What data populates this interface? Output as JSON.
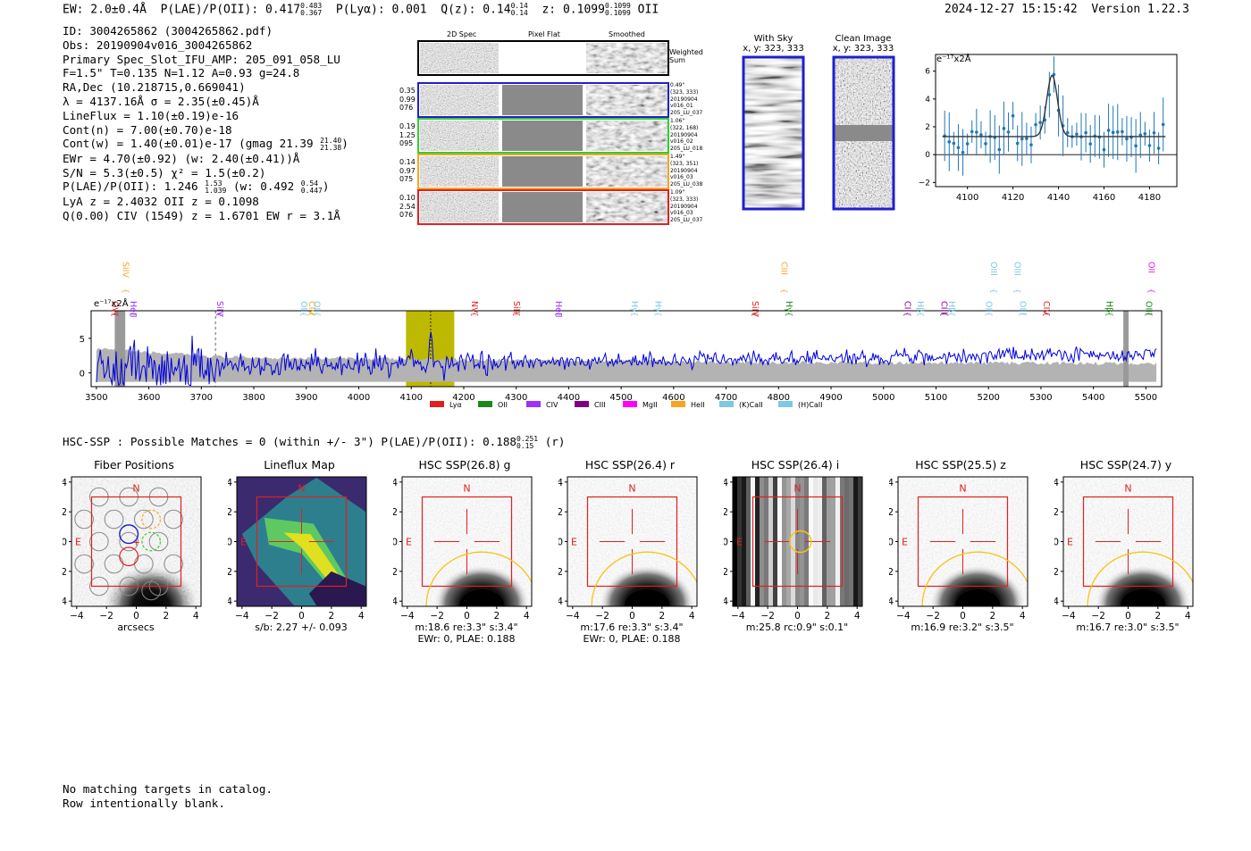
{
  "header": {
    "ew": "EW: 2.0±0.4Å",
    "plae_label": "P(LAE)/P(OII): 0.417",
    "plae_hi": "0.483",
    "plae_lo": "0.367",
    "plya": "P(Lyα): 0.001",
    "qz_label": "Q(z): 0.14",
    "qz_hi": "0.14",
    "qz_lo": "0.14",
    "z_label": "z: 0.1099",
    "z_hi": "0.1099",
    "z_lo": "0.1099",
    "z_line": "OII",
    "timestamp": "2024-12-27 15:15:42",
    "version": "Version 1.22.3"
  },
  "info": {
    "id": "ID: 3004265862 (3004265862.pdf)",
    "obs": "Obs: 20190904v016_3004265862",
    "primary": "Primary Spec_Slot_IFU_AMP: 205_091_058_LU",
    "fit": "F=1.5\"  T=0.135  N=1.12  A=0.93  g=24.8",
    "radec": "RA,Dec (10.218715,0.669041)",
    "lambda": "λ = 4137.16Å  σ = 2.35(±0.45)Å",
    "lineflux": "LineFlux = 1.10(±0.19)e-16",
    "contn": "Cont(n) = 7.00(±0.70)e-18",
    "contw": "Cont(w) = 1.40(±0.01)e-17 (gmag 21.39",
    "contw_hi": "21.40",
    "contw_lo": "21.38",
    "ewr": "EWr = 4.70(±0.92) (w: 2.40(±0.41))Å",
    "sn": "S/N = 5.3(±0.5)  χ² = 1.5(±0.2)",
    "plae": "P(LAE)/P(OII): 1.246",
    "plae_hi": "1.53",
    "plae_lo": "1.039",
    "plae_w": "(w: 0.492",
    "plae_w_hi": "0.54",
    "plae_w_lo": "0.447",
    "lya": "LyA z = 2.4032  OII z = 0.1098",
    "civ": "Q(0.00) CIV (1549) z = 1.6701  EW r = 3.1Å"
  },
  "spec2d": {
    "col_headers": [
      "2D Spec",
      "Pixel Flat",
      "Smoothed"
    ],
    "weighted_label": "Weighted\nSum",
    "rows": [
      {
        "left": [
          "0.35",
          "0.99",
          "076"
        ],
        "right": [
          "0.49\"",
          "(323, 333)",
          "20190904",
          "v016_01",
          "205_LU_037"
        ],
        "color": "#1f1fd0"
      },
      {
        "left": [
          "0.19",
          "1.25",
          "095"
        ],
        "right": [
          "1.06\"",
          "(322, 168)",
          "20190904",
          "v016_02",
          "205_LU_018"
        ],
        "color": "#33cc33"
      },
      {
        "left": [
          "0.14",
          "0.97",
          "075"
        ],
        "right": [
          "1.49\"",
          "(323, 351)",
          "20190904",
          "v016_03",
          "205_LU_038"
        ],
        "color": "#f5a623"
      },
      {
        "left": [
          "0.10",
          "2.54",
          "076"
        ],
        "right": [
          "1.09\"",
          "(323, 333)",
          "20190904",
          "v016_03",
          "205_LU_037"
        ],
        "color": "#e02020"
      }
    ]
  },
  "sky": {
    "with_sky_title": "With Sky",
    "with_sky_xy": "x, y: 323, 333",
    "clean_title": "Clean Image",
    "clean_xy": "x, y: 323, 333"
  },
  "zoom_plot": {
    "unit_label": "e⁻¹⁷x2Å",
    "x_ticks": [
      "4100",
      "4120",
      "4140",
      "4160",
      "4180"
    ],
    "y_ticks": [
      "−2",
      "0",
      "2",
      "4",
      "6"
    ]
  },
  "full_spectrum": {
    "unit_label": "e⁻¹⁷x2Å",
    "x_ticks": [
      "3500",
      "3600",
      "3700",
      "3800",
      "3900",
      "4000",
      "4100",
      "4200",
      "4300",
      "4400",
      "4500",
      "4600",
      "4700",
      "4800",
      "4900",
      "5000",
      "5100",
      "5200",
      "5300",
      "5400",
      "5500"
    ],
    "y_ticks": [
      "0",
      "5"
    ],
    "line_labels": [
      {
        "name": "SiIV",
        "color": "#f5a623",
        "row": 0
      },
      {
        "name": "OVI",
        "color": "#e02020",
        "row": 1
      },
      {
        "name": "HeII",
        "color": "#9b30ff",
        "row": 1
      },
      {
        "name": "SiIV",
        "color": "#9b30ff",
        "row": 1
      },
      {
        "name": "OII",
        "color": "#7ec8e3",
        "row": 1
      },
      {
        "name": "CIV",
        "color": "#f5a623",
        "row": 1
      },
      {
        "name": "OII",
        "color": "#7ec8e3",
        "row": 1
      },
      {
        "name": "NV",
        "color": "#e02020",
        "row": 1
      },
      {
        "name": "SiII",
        "color": "#e02020",
        "row": 1
      },
      {
        "name": "HeII",
        "color": "#9b30ff",
        "row": 1
      },
      {
        "name": "Hγ",
        "color": "#7ec8e3",
        "row": 1
      },
      {
        "name": "Hγ",
        "color": "#7ec8e3",
        "row": 1
      },
      {
        "name": "SiIV",
        "color": "#e02020",
        "row": 1
      },
      {
        "name": "CIII",
        "color": "#f5a623",
        "row": 0
      },
      {
        "name": "Hγ",
        "color": "#1a8a1a",
        "row": 1
      },
      {
        "name": "CII",
        "color": "#800080",
        "row": 1
      },
      {
        "name": "Hβ",
        "color": "#7ec8e3",
        "row": 1
      },
      {
        "name": "CIII",
        "color": "#800080",
        "row": 1
      },
      {
        "name": "Hβ",
        "color": "#7ec8e3",
        "row": 1
      },
      {
        "name": "OII",
        "color": "#7ec8e3",
        "row": 1
      },
      {
        "name": "OIII",
        "color": "#7ec8e3",
        "row": 0
      },
      {
        "name": "OIII",
        "color": "#7ec8e3",
        "row": 0
      },
      {
        "name": "OIII",
        "color": "#7ec8e3",
        "row": 1
      },
      {
        "name": "CIV",
        "color": "#e02020",
        "row": 1
      },
      {
        "name": "Hβ",
        "color": "#1a8a1a",
        "row": 1
      },
      {
        "name": "OII",
        "color": "#e020e0",
        "row": 0
      },
      {
        "name": "OIII",
        "color": "#1a8a1a",
        "row": 1
      }
    ],
    "legend": [
      {
        "label": "Lyα",
        "color": "#e02020"
      },
      {
        "label": "OII",
        "color": "#1a8a1a"
      },
      {
        "label": "CIV",
        "color": "#9b30ff"
      },
      {
        "label": "CIII",
        "color": "#800080"
      },
      {
        "label": "MgII",
        "color": "#ff00ff"
      },
      {
        "label": "HeII",
        "color": "#f5a623"
      },
      {
        "label": "(K)CaII",
        "color": "#7ec8e3"
      },
      {
        "label": "(H)CaII",
        "color": "#7ec8e3"
      }
    ]
  },
  "hsc": {
    "summary": "HSC-SSP : Possible Matches = 0 (within +/- 3\")  P(LAE)/P(OII): 0.188",
    "summary_hi": "0.251",
    "summary_lo": "0.15",
    "summary_band": "(r)",
    "panels": [
      {
        "title": "Fiber Positions",
        "cap1": "arcsecs",
        "cap2": "",
        "kind": "fiber"
      },
      {
        "title": "Lineflux Map",
        "cap1": "s/b: 2.27 +/- 0.093",
        "cap2": "",
        "kind": "lineflux"
      },
      {
        "title": "HSC SSP(26.8) g",
        "cap1": "m:18.6  re:3.3\"  s:3.4\"",
        "cap2": "EWr: 0, PLAE: 0.188",
        "kind": "hsc"
      },
      {
        "title": "HSC SSP(26.4) r",
        "cap1": "m:17.6  re:3.3\"  s:3.4\"",
        "cap2": "EWr: 0, PLAE: 0.188",
        "kind": "hsc"
      },
      {
        "title": "HSC SSP(26.4) i",
        "cap1": "m:25.8 rc:0.9\"  s:0.1\"",
        "cap2": "",
        "kind": "stripes"
      },
      {
        "title": "HSC SSP(25.5) z",
        "cap1": "m:16.9  re:3.2\"  s:3.5\"",
        "cap2": "",
        "kind": "hsc"
      },
      {
        "title": "HSC SSP(24.7) y",
        "cap1": "m:16.7  re:3.0\"  s:3.5\"",
        "cap2": "",
        "kind": "hsc_noisy"
      }
    ],
    "axis_ticks": [
      "−4",
      "−2",
      "0",
      "2",
      "4"
    ],
    "n_label": "N",
    "e_label": "E"
  },
  "footer": {
    "line1": "No matching targets in catalog.",
    "line2": "Row intentionally blank."
  }
}
